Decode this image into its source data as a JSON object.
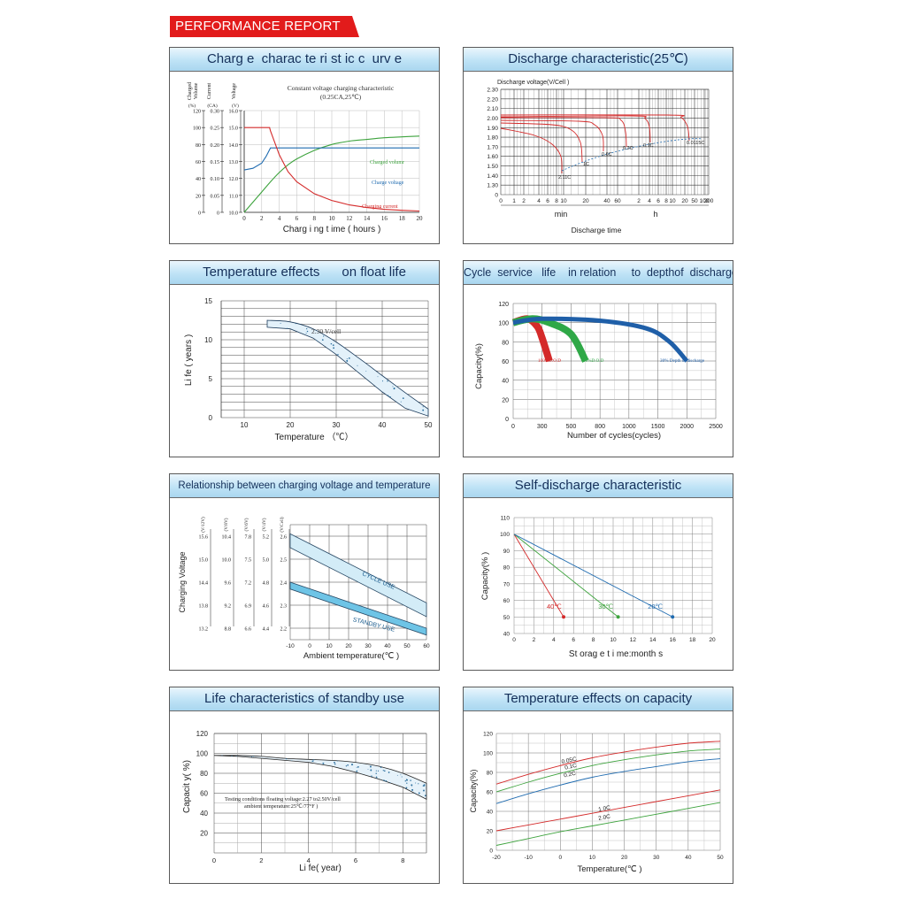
{
  "report_title": "PERFORMANCE REPORT",
  "chart_data": [
    {
      "id": "charge",
      "type": "line",
      "title": "Charg e  charac te ri st ic c  urv e",
      "subtitle": "Constant voltage charging characteristic",
      "subtitle2": "(0.25CA,25℃)",
      "xlabel": "Charg i ng  t ime ( hours )",
      "x_ticks": [
        "0",
        "2",
        "4",
        "6",
        "8",
        "10",
        "12",
        "14",
        "16",
        "18",
        "20"
      ],
      "xlim": [
        0,
        20
      ],
      "axis_headers": [
        {
          "top": "Charged",
          "bottom": "Volume",
          "unit": "(%)"
        },
        {
          "top": "Current",
          "bottom": "",
          "unit": "(CA)"
        },
        {
          "top": "Voltage",
          "bottom": "",
          "unit": "(V)"
        }
      ],
      "y_axes": [
        {
          "name": "Charged Volume",
          "ticks": [
            "0",
            "20",
            "40",
            "60",
            "80",
            "100",
            "120"
          ]
        },
        {
          "name": "Current",
          "ticks": [
            "0",
            "0.05",
            "0.10",
            "0.15",
            "0.20",
            "0.25",
            "0.30"
          ]
        },
        {
          "name": "Voltage",
          "ticks": [
            "10.0",
            "11.0",
            "12.0",
            "13.0",
            "14.0",
            "15.0",
            "16.0"
          ]
        }
      ],
      "series": [
        {
          "name": "Charged volumr",
          "axis": "Charged Volume",
          "color": "#3da33d",
          "x": [
            0,
            1,
            2,
            3,
            4,
            5,
            6,
            8,
            10,
            12,
            14,
            16,
            18,
            20
          ],
          "y": [
            0,
            12,
            24,
            36,
            47,
            56,
            63,
            73,
            80,
            84,
            86,
            88,
            89,
            90
          ]
        },
        {
          "name": "Charge voltage",
          "axis": "Voltage",
          "color": "#1f6bb0",
          "x": [
            0,
            1,
            2,
            2.5,
            3,
            20
          ],
          "y": [
            12.5,
            12.6,
            12.9,
            13.3,
            13.8,
            13.8
          ]
        },
        {
          "name": "Charging current",
          "axis": "Current",
          "color": "#d42a2a",
          "x": [
            0,
            2.9,
            3,
            4,
            5,
            6,
            8,
            10,
            12,
            14,
            16,
            18,
            20
          ],
          "y": [
            0.25,
            0.25,
            0.24,
            0.17,
            0.12,
            0.09,
            0.055,
            0.035,
            0.022,
            0.014,
            0.009,
            0.006,
            0.004
          ]
        }
      ]
    },
    {
      "id": "discharge",
      "type": "line",
      "title": "Discharge characteristic(25℃)",
      "ylabel": "Discharge voltage(V/Cell )",
      "xlabel": "Discharge time",
      "y_ticks": [
        "0",
        "1.30",
        "1.40",
        "1.50",
        "1.60",
        "1.70",
        "1.80",
        "1.90",
        "2.00",
        "2.10",
        "2.20",
        "2.30"
      ],
      "x_ticks": [
        "0",
        "1",
        "2",
        "4",
        "6",
        "8",
        "10",
        "20",
        "40",
        "60",
        "2",
        "4",
        "6",
        "8",
        "10",
        "20",
        "50",
        "100",
        "200"
      ],
      "x_group_labels": [
        "min",
        "h"
      ],
      "curve_labels": [
        "2.11C",
        "1C",
        "0.6C",
        "0.2C",
        "0.1C",
        "0.0115C"
      ],
      "curve_color": "#d42a2a",
      "cutoff_color": "#1f6bb0"
    },
    {
      "id": "float_life",
      "type": "area",
      "title": "Temperature effects      on float life",
      "ylabel": "Li fe ( years )",
      "xlabel": "Temperature （℃）",
      "y_ticks": [
        "0",
        "5",
        "10",
        "15"
      ],
      "x_ticks": [
        "10",
        "20",
        "30",
        "40",
        "50"
      ],
      "annotation": "2.30 V/cell",
      "band_upper": {
        "x": [
          15,
          20,
          25,
          30,
          35,
          40,
          45,
          50
        ],
        "y": [
          12.5,
          12.3,
          11.4,
          9.7,
          7.6,
          5.4,
          3.2,
          1.1
        ]
      },
      "band_lower": {
        "x": [
          15,
          20,
          25,
          30,
          35,
          40,
          45,
          50
        ],
        "y": [
          11.6,
          11.4,
          10.2,
          8.1,
          5.7,
          3.3,
          1.2,
          0.2
        ]
      }
    },
    {
      "id": "cycle",
      "type": "line",
      "title": "Cycle  service   life    in relation     to  depthof  discharge",
      "ylabel": "Capacity(%)",
      "xlabel": "Number of cycles(cycles)",
      "y_ticks": [
        "0",
        "20",
        "40",
        "60",
        "80",
        "100",
        "120"
      ],
      "x_ticks": [
        "0",
        "300",
        "500",
        "800",
        "1000",
        "1500",
        "2000",
        "2500"
      ],
      "series": [
        {
          "name": "100%D.O.D",
          "color": "#d42a2a",
          "x": [
            0,
            150,
            250,
            300,
            350
          ],
          "y": [
            100,
            104,
            96,
            84,
            60
          ]
        },
        {
          "name": "50%D.O.D",
          "color": "#2fa847",
          "x": [
            0,
            200,
            350,
            500,
            650
          ],
          "y": [
            100,
            104,
            100,
            88,
            60
          ]
        },
        {
          "name": "30% Depth of discharge",
          "color": "#1f5fa8",
          "x": [
            0,
            300,
            800,
            1300,
            1700,
            2000
          ],
          "y": [
            100,
            104,
            102,
            94,
            80,
            60
          ]
        }
      ]
    },
    {
      "id": "charging_voltage",
      "type": "line",
      "title": "Relationship between charging voltage and temperature",
      "ylabel": "Charging Voltage",
      "xlabel": "Ambient temperature(℃   )",
      "x_ticks": [
        "-10",
        "0",
        "10",
        "20",
        "30",
        "40",
        "50",
        "60"
      ],
      "axis_units": [
        "(V/12V)",
        "(V/8V)",
        "(V/6V)",
        "(V/4V)",
        "(V/Cell)"
      ],
      "y_axes": [
        {
          "ticks": [
            "13.2",
            "13.8",
            "14.4",
            "15.0",
            "15.6"
          ]
        },
        {
          "ticks": [
            "8.8",
            "9.2",
            "9.6",
            "10.0",
            "10.4"
          ]
        },
        {
          "ticks": [
            "6.6",
            "6.9",
            "7.2",
            "7.5",
            "7.8"
          ]
        },
        {
          "ticks": [
            "4.4",
            "4.6",
            "4.8",
            "5.0",
            "5.2"
          ]
        },
        {
          "ticks": [
            "2.2",
            "2.3",
            "2.4",
            "2.5",
            "2.6"
          ]
        }
      ],
      "bands": [
        {
          "name": "CYCLE USE",
          "x": [
            -10,
            60
          ],
          "upper": [
            2.61,
            2.31
          ],
          "lower": [
            2.55,
            2.25
          ]
        },
        {
          "name": "STANDBY USE",
          "x": [
            -10,
            60
          ],
          "upper": [
            2.4,
            2.2
          ],
          "lower": [
            2.37,
            2.17
          ]
        }
      ]
    },
    {
      "id": "self_discharge",
      "type": "line",
      "title": "Self-discharge characteristic",
      "ylabel": "Capacity(% )",
      "xlabel": "St orag e t i me:month s",
      "y_ticks": [
        "40",
        "50",
        "60",
        "70",
        "80",
        "90",
        "100",
        "110"
      ],
      "x_ticks": [
        "0",
        "2",
        "4",
        "6",
        "8",
        "10",
        "12",
        "14",
        "16",
        "18",
        "20"
      ],
      "series": [
        {
          "name": "40℃",
          "color": "#d42a2a",
          "x": [
            0,
            5
          ],
          "y": [
            100,
            50
          ]
        },
        {
          "name": "30℃",
          "color": "#3da33d",
          "x": [
            0,
            10.5
          ],
          "y": [
            100,
            50
          ]
        },
        {
          "name": "20℃",
          "color": "#1f6bb0",
          "x": [
            0,
            16
          ],
          "y": [
            100,
            50
          ]
        }
      ]
    },
    {
      "id": "standby_life",
      "type": "area",
      "title": "Life characteristics of standby use",
      "ylabel": "Capacit y( %)",
      "xlabel": "Li fe( year)",
      "y_ticks": [
        "20",
        "40",
        "60",
        "80",
        "100",
        "120"
      ],
      "x_ticks": [
        "0",
        "2",
        "4",
        "6",
        "8"
      ],
      "annotation": "Testing conditions floating voltage:2.27 to2.50V/cell",
      "annotation2": "ambient temperature:25℃/77°F     )",
      "band_upper": {
        "x": [
          0,
          1,
          2,
          3,
          4,
          5,
          6,
          7,
          8,
          9
        ],
        "y": [
          98,
          98,
          97,
          95,
          94,
          93,
          91,
          87,
          80,
          70
        ]
      },
      "band_lower": {
        "x": [
          0,
          1,
          2,
          3,
          4,
          5,
          6,
          7,
          8,
          9
        ],
        "y": [
          98,
          97,
          95,
          93,
          91,
          87,
          81,
          74,
          66,
          54
        ]
      }
    },
    {
      "id": "temp_capacity",
      "type": "line",
      "title": "Temperature effects on capacity",
      "ylabel": "Capacity(%)",
      "xlabel": "Temperature(℃   )",
      "y_ticks": [
        "0",
        "20",
        "40",
        "60",
        "80",
        "100",
        "120"
      ],
      "x_ticks": [
        "-20",
        "-10",
        "0",
        "10",
        "20",
        "30",
        "40",
        "50"
      ],
      "series": [
        {
          "name": "0.05C",
          "color": "#d42a2a",
          "x": [
            -20,
            -10,
            0,
            10,
            20,
            30,
            40,
            50
          ],
          "y": [
            68,
            78,
            87,
            95,
            101,
            106,
            110,
            112
          ]
        },
        {
          "name": "0.1C",
          "color": "#3da33d",
          "x": [
            -20,
            -10,
            0,
            10,
            20,
            30,
            40,
            50
          ],
          "y": [
            60,
            70,
            79,
            87,
            93,
            98,
            102,
            104
          ]
        },
        {
          "name": "0.2C",
          "color": "#1f6bb0",
          "x": [
            -20,
            -10,
            0,
            10,
            20,
            30,
            40,
            50
          ],
          "y": [
            48,
            58,
            67,
            75,
            81,
            86,
            91,
            94
          ]
        },
        {
          "name": "1.0C",
          "color": "#d42a2a",
          "x": [
            -20,
            -10,
            0,
            10,
            20,
            30,
            40,
            50
          ],
          "y": [
            20,
            26,
            32,
            38,
            44,
            50,
            56,
            62
          ]
        },
        {
          "name": "2.0C",
          "color": "#3da33d",
          "x": [
            -20,
            -10,
            0,
            10,
            20,
            30,
            40,
            50
          ],
          "y": [
            5,
            12,
            19,
            25,
            31,
            37,
            43,
            49
          ]
        }
      ]
    }
  ]
}
